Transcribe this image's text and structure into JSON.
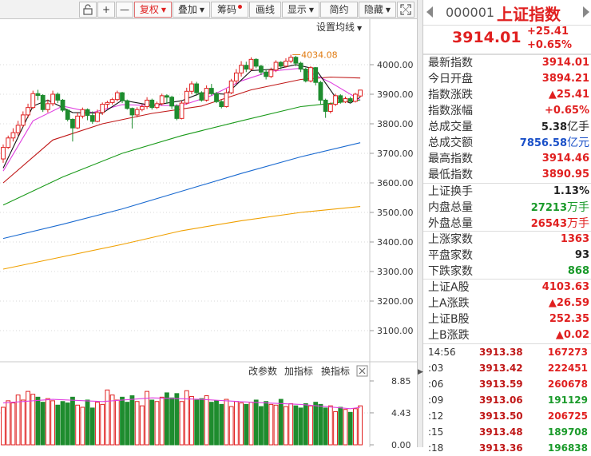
{
  "toolbar": {
    "buttons": [
      {
        "label": ""
      },
      {
        "label": "+"
      },
      {
        "label": "—"
      },
      {
        "label": "复权"
      },
      {
        "label": "叠加"
      },
      {
        "label": "筹码"
      },
      {
        "label": "画线"
      },
      {
        "label": "显示"
      },
      {
        "label": "简约"
      },
      {
        "label": "隐藏"
      }
    ]
  },
  "chart": {
    "settings_label": "设置均线",
    "high_marker": "4034.08",
    "y_ticks": [
      "4000.00",
      "3900.00",
      "3800.00",
      "3700.00",
      "3600.00",
      "3500.00",
      "3400.00",
      "3300.00",
      "3200.00",
      "3100.00"
    ],
    "colors": {
      "up": "#e02020",
      "down": "#1e8c2e",
      "ma5": "#111111",
      "ma10": "#e040e0",
      "ma20": "#c01818",
      "ma60": "#1a9a1a",
      "ma120": "#1a6ad0",
      "ma250": "#f0a000"
    }
  },
  "volume": {
    "controls": [
      "改参数",
      "加指标",
      "换指标"
    ],
    "close_icon": "close-icon",
    "y_ticks": [
      "8.85",
      "4.43",
      "0.00"
    ]
  },
  "chart_data": {
    "type": "candlestick",
    "y_range": [
      3050,
      4080
    ],
    "candles": [
      [
        3681,
        3720,
        3668,
        3730
      ],
      [
        3720,
        3752,
        3715,
        3760
      ],
      [
        3752,
        3770,
        3740,
        3785
      ],
      [
        3770,
        3795,
        3760,
        3810
      ],
      [
        3795,
        3830,
        3788,
        3842
      ],
      [
        3830,
        3855,
        3820,
        3868
      ],
      [
        3855,
        3902,
        3850,
        3912
      ],
      [
        3902,
        3896,
        3880,
        3915
      ],
      [
        3896,
        3848,
        3840,
        3900
      ],
      [
        3848,
        3868,
        3838,
        3882
      ],
      [
        3868,
        3900,
        3860,
        3912
      ],
      [
        3900,
        3880,
        3870,
        3906
      ],
      [
        3880,
        3846,
        3840,
        3884
      ],
      [
        3846,
        3815,
        3808,
        3850
      ],
      [
        3815,
        3786,
        3740,
        3818
      ],
      [
        3786,
        3826,
        3782,
        3838
      ],
      [
        3826,
        3848,
        3818,
        3855
      ],
      [
        3848,
        3828,
        3812,
        3852
      ],
      [
        3828,
        3808,
        3800,
        3842
      ],
      [
        3808,
        3838,
        3805,
        3848
      ],
      [
        3838,
        3866,
        3830,
        3872
      ],
      [
        3866,
        3872,
        3852,
        3878
      ],
      [
        3872,
        3882,
        3865,
        3888
      ],
      [
        3882,
        3905,
        3876,
        3912
      ],
      [
        3905,
        3878,
        3870,
        3908
      ],
      [
        3878,
        3852,
        3848,
        3882
      ],
      [
        3852,
        3830,
        3784,
        3855
      ],
      [
        3830,
        3848,
        3822,
        3856
      ],
      [
        3848,
        3858,
        3842,
        3866
      ],
      [
        3858,
        3880,
        3850,
        3890
      ],
      [
        3880,
        3855,
        3848,
        3885
      ],
      [
        3855,
        3868,
        3850,
        3875
      ],
      [
        3868,
        3895,
        3862,
        3902
      ],
      [
        3895,
        3890,
        3868,
        3900
      ],
      [
        3890,
        3860,
        3850,
        3895
      ],
      [
        3860,
        3818,
        3812,
        3866
      ],
      [
        3818,
        3870,
        3815,
        3878
      ],
      [
        3870,
        3910,
        3865,
        3922
      ],
      [
        3910,
        3935,
        3900,
        3944
      ],
      [
        3935,
        3905,
        3895,
        3942
      ],
      [
        3905,
        3880,
        3875,
        3910
      ],
      [
        3880,
        3920,
        3875,
        3930
      ],
      [
        3920,
        3902,
        3896,
        3935
      ],
      [
        3902,
        3875,
        3870,
        3908
      ],
      [
        3875,
        3858,
        3852,
        3880
      ],
      [
        3858,
        3905,
        3855,
        3918
      ],
      [
        3905,
        3945,
        3900,
        3952
      ],
      [
        3945,
        3972,
        3935,
        3985
      ],
      [
        3972,
        3998,
        3960,
        4012
      ],
      [
        3998,
        3985,
        3975,
        4010
      ],
      [
        3985,
        4018,
        3980,
        4025
      ],
      [
        4018,
        3995,
        3988,
        4022
      ],
      [
        3995,
        3975,
        3965,
        4000
      ],
      [
        3975,
        3960,
        3950,
        3985
      ],
      [
        3960,
        3982,
        3955,
        3990
      ],
      [
        3982,
        4008,
        3975,
        4015
      ],
      [
        4008,
        3995,
        3985,
        4012
      ],
      [
        3995,
        4012,
        3990,
        4022
      ],
      [
        4012,
        4025,
        4005,
        4034
      ],
      [
        4025,
        4005,
        3995,
        4030
      ],
      [
        4005,
        3985,
        3975,
        4010
      ],
      [
        3985,
        3945,
        3940,
        3990
      ],
      [
        3945,
        3990,
        3940,
        3995
      ],
      [
        3990,
        3940,
        3930,
        3992
      ],
      [
        3940,
        3880,
        3865,
        3945
      ],
      [
        3880,
        3842,
        3820,
        3885
      ],
      [
        3842,
        3866,
        3835,
        3872
      ],
      [
        3866,
        3895,
        3860,
        3902
      ],
      [
        3895,
        3874,
        3868,
        3900
      ],
      [
        3874,
        3885,
        3870,
        3892
      ],
      [
        3885,
        3876,
        3870,
        3892
      ],
      [
        3876,
        3900,
        3872,
        3905
      ],
      [
        3894,
        3914,
        3890,
        3915
      ]
    ],
    "ma5": [
      [
        0,
        3650
      ],
      [
        6,
        3860
      ],
      [
        9,
        3880
      ],
      [
        14,
        3838
      ],
      [
        20,
        3836
      ],
      [
        24,
        3880
      ],
      [
        30,
        3862
      ],
      [
        36,
        3878
      ],
      [
        40,
        3905
      ],
      [
        45,
        3900
      ],
      [
        50,
        3980
      ],
      [
        55,
        3985
      ],
      [
        59,
        4000
      ],
      [
        63,
        3985
      ],
      [
        67,
        3890
      ],
      [
        70,
        3870
      ],
      [
        72,
        3890
      ]
    ],
    "ma10": [
      [
        0,
        3640
      ],
      [
        6,
        3810
      ],
      [
        12,
        3860
      ],
      [
        18,
        3838
      ],
      [
        24,
        3865
      ],
      [
        30,
        3862
      ],
      [
        36,
        3862
      ],
      [
        42,
        3895
      ],
      [
        48,
        3945
      ],
      [
        54,
        3978
      ],
      [
        60,
        3988
      ],
      [
        66,
        3940
      ],
      [
        72,
        3880
      ]
    ],
    "ma20": [
      [
        0,
        3600
      ],
      [
        10,
        3745
      ],
      [
        20,
        3800
      ],
      [
        30,
        3835
      ],
      [
        40,
        3860
      ],
      [
        50,
        3915
      ],
      [
        60,
        3950
      ],
      [
        66,
        3958
      ],
      [
        72,
        3955
      ]
    ],
    "ma60": [
      [
        0,
        3525
      ],
      [
        12,
        3620
      ],
      [
        24,
        3700
      ],
      [
        36,
        3760
      ],
      [
        48,
        3810
      ],
      [
        60,
        3858
      ],
      [
        72,
        3880
      ]
    ],
    "ma120": [
      [
        0,
        3412
      ],
      [
        12,
        3460
      ],
      [
        24,
        3512
      ],
      [
        36,
        3572
      ],
      [
        48,
        3632
      ],
      [
        60,
        3688
      ],
      [
        72,
        3736
      ]
    ],
    "ma250": [
      [
        0,
        3308
      ],
      [
        12,
        3350
      ],
      [
        24,
        3392
      ],
      [
        36,
        3438
      ],
      [
        48,
        3472
      ],
      [
        60,
        3500
      ],
      [
        72,
        3520
      ]
    ],
    "vol_range": [
      0,
      8.85
    ],
    "vol_values": [
      5.2,
      6.1,
      5.8,
      6.9,
      6.2,
      7.4,
      7.0,
      6.6,
      5.9,
      6.4,
      6.1,
      5.5,
      6.0,
      5.8,
      6.6,
      5.5,
      5.2,
      6.2,
      5.1,
      5.9,
      5.6,
      7.6,
      6.9,
      6.2,
      6.6,
      5.9,
      6.8,
      6.0,
      5.4,
      7.4,
      6.2,
      6.0,
      6.6,
      7.2,
      6.5,
      7.1,
      6.0,
      7.5,
      6.7,
      6.2,
      6.4,
      6.8,
      5.9,
      6.1,
      5.6,
      6.3,
      5.3,
      6.0,
      5.8,
      5.6,
      5.9,
      6.2,
      5.3,
      6.0,
      5.6,
      5.5,
      6.3,
      5.3,
      5.7,
      5.4,
      5.1,
      5.7,
      5.4,
      5.9,
      5.6,
      5.1,
      5.4,
      4.6,
      5.2,
      4.9,
      4.5,
      5.0,
      5.4
    ],
    "vol_ma": [
      [
        0,
        5.8
      ],
      [
        10,
        6.3
      ],
      [
        20,
        6.0
      ],
      [
        30,
        6.5
      ],
      [
        40,
        6.3
      ],
      [
        50,
        5.9
      ],
      [
        60,
        5.6
      ],
      [
        70,
        5.0
      ],
      [
        72,
        5.2
      ]
    ]
  },
  "panel": {
    "code": "000001",
    "name": "上证指数",
    "price": "3914.01",
    "chg_abs": "+25.41",
    "chg_pct": "+0.65%",
    "quote_rows": [
      {
        "label": "最新指数",
        "value": "3914.01",
        "unit": "",
        "cls": "red"
      },
      {
        "label": "今日开盘",
        "value": "3894.21",
        "unit": "",
        "cls": "red"
      },
      {
        "label": "指数涨跌",
        "value": "▲25.41",
        "unit": "",
        "cls": "red"
      },
      {
        "label": "指数涨幅",
        "value": "+0.65%",
        "unit": "",
        "cls": "red"
      },
      {
        "label": "总成交量",
        "value": "5.38",
        "unit": "亿手",
        "cls": "dark"
      },
      {
        "label": "总成交额",
        "value": "7856.58",
        "unit": "亿元",
        "cls": "blue"
      },
      {
        "label": "最高指数",
        "value": "3914.46",
        "unit": "",
        "cls": "red"
      },
      {
        "label": "最低指数",
        "value": "3890.95",
        "unit": "",
        "cls": "red"
      }
    ],
    "turnover_rows": [
      {
        "label": "上证换手",
        "value": "1.13%",
        "unit": "",
        "cls": "dark"
      },
      {
        "label": "内盘总量",
        "value": "27213",
        "unit": "万手",
        "cls": "green"
      },
      {
        "label": "外盘总量",
        "value": "26543",
        "unit": "万手",
        "cls": "red"
      }
    ],
    "breadth_rows": [
      {
        "label": "上涨家数",
        "value": "1363",
        "unit": "",
        "cls": "red"
      },
      {
        "label": "平盘家数",
        "value": "93",
        "unit": "",
        "cls": "dark"
      },
      {
        "label": "下跌家数",
        "value": "868",
        "unit": "",
        "cls": "green"
      }
    ],
    "index_rows": [
      {
        "label": "上证A股",
        "value": "4103.63",
        "unit": "",
        "cls": "red"
      },
      {
        "label": "上A涨跌",
        "value": "▲26.59",
        "unit": "",
        "cls": "red"
      },
      {
        "label": "上证B股",
        "value": "252.35",
        "unit": "",
        "cls": "red"
      },
      {
        "label": "上B涨跌",
        "value": "▲0.02",
        "unit": "",
        "cls": "red"
      }
    ],
    "ticks": [
      {
        "time": "14:56",
        "price": "3913.38",
        "vol": "167273",
        "cls": "red"
      },
      {
        "time": ":03",
        "price": "3913.42",
        "vol": "222451",
        "cls": "red"
      },
      {
        "time": ":06",
        "price": "3913.59",
        "vol": "260678",
        "cls": "red"
      },
      {
        "time": ":09",
        "price": "3913.06",
        "vol": "191129",
        "cls": "green"
      },
      {
        "time": ":12",
        "price": "3913.50",
        "vol": "206725",
        "cls": "red"
      },
      {
        "time": ":15",
        "price": "3913.48",
        "vol": "189708",
        "cls": "green"
      },
      {
        "time": ":18",
        "price": "3913.36",
        "vol": "196838",
        "cls": "green"
      }
    ]
  }
}
